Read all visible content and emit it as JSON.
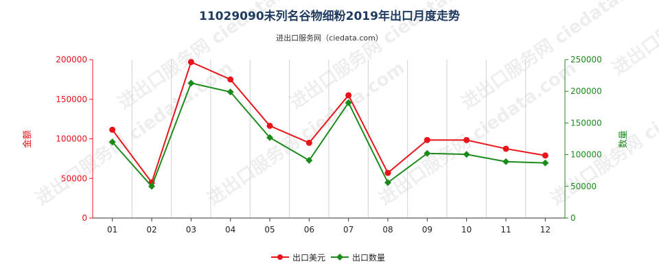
{
  "chart_data": {
    "type": "line",
    "title": "11029090未列名谷物细粉2019年出口月度走势",
    "subtitle": "进出口服务网（ciedata.com）",
    "watermark": "进出口服务网 ciedata.com",
    "categories": [
      "01",
      "02",
      "03",
      "04",
      "05",
      "06",
      "07",
      "08",
      "09",
      "10",
      "11",
      "12"
    ],
    "y_left": {
      "label": "金额",
      "ylim": [
        0,
        200000
      ],
      "ticks": [
        "0",
        "50000",
        "100000",
        "150000",
        "200000"
      ],
      "color": "#e8141a"
    },
    "y_right": {
      "label": "数量",
      "ylim": [
        0,
        250000
      ],
      "ticks": [
        "0",
        "50000",
        "100000",
        "150000",
        "200000",
        "250000"
      ],
      "color": "#1a8a1a"
    },
    "series": [
      {
        "name": "出口美元",
        "axis": "left",
        "color": "#e8141a",
        "values": [
          111500,
          45000,
          197000,
          175000,
          116500,
          95000,
          155000,
          57000,
          98500,
          98500,
          87500,
          79000
        ]
      },
      {
        "name": "出口数量",
        "axis": "right",
        "color": "#1a8a1a",
        "values": [
          120000,
          50000,
          213000,
          199000,
          127000,
          91000,
          182000,
          56000,
          102000,
          100500,
          89000,
          87000
        ]
      }
    ],
    "grid": {
      "vertical": true,
      "horizontal": false
    },
    "legend_position": "bottom-center"
  }
}
